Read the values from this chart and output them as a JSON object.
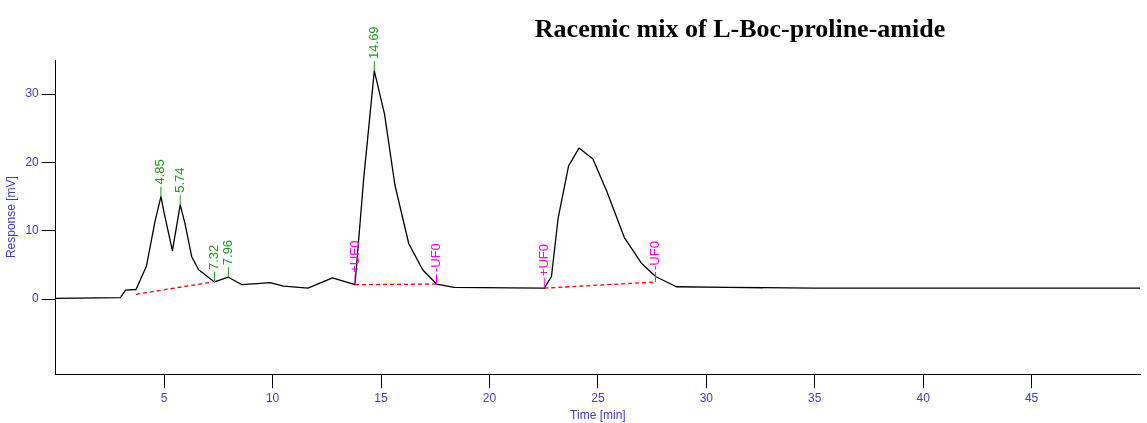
{
  "chart_data": {
    "type": "line",
    "title": "Racemic mix of L-Boc-proline-amide",
    "xlabel": "Time [min]",
    "ylabel": "Response [mV]",
    "xlim": [
      0,
      50
    ],
    "xticks": [
      5,
      10,
      15,
      20,
      25,
      30,
      35,
      40,
      45
    ],
    "ylim": [
      -11,
      35
    ],
    "yticks": [
      0,
      10,
      20,
      30
    ],
    "grid": false,
    "legend": false,
    "marker": "none",
    "series": [
      {
        "color": "#000000",
        "line_style": "solid",
        "x": [
          0,
          2.98,
          3.22,
          3.7,
          4.18,
          4.58,
          4.85,
          5.0,
          5.38,
          5.74,
          5.95,
          6.27,
          6.59,
          7.32,
          7.96,
          8.59,
          9.87,
          10.51,
          11.63,
          12.76,
          13.8,
          14.2,
          14.69,
          15.16,
          15.64,
          16.28,
          16.92,
          17.56,
          18.37,
          22.53,
          22.86,
          23.17,
          23.65,
          24.13,
          24.77,
          25.42,
          26.22,
          27.02,
          27.66,
          28.62,
          31,
          35,
          40,
          45,
          50
        ],
        "values": [
          0.1,
          0.2,
          1.3,
          1.4,
          4.8,
          11.4,
          15.0,
          12.6,
          7.1,
          13.8,
          11.2,
          6.2,
          4.3,
          2.5,
          3.2,
          2.1,
          2.4,
          1.9,
          1.6,
          3.1,
          2.1,
          17.6,
          33.4,
          27.1,
          16.7,
          8.1,
          4.3,
          2.2,
          1.7,
          1.6,
          3.3,
          11.9,
          19.5,
          22.1,
          20.5,
          15.7,
          9.0,
          5.2,
          3.3,
          1.8,
          1.7,
          1.6,
          1.6,
          1.6,
          1.6
        ]
      },
      {
        "color": "#ff0000",
        "line_style": "dashed",
        "x": [
          3.7,
          7.23,
          10,
          13.8,
          17.56,
          20,
          22.53,
          27.66
        ],
        "values": [
          0.7,
          2.5,
          null,
          2.1,
          2.2,
          null,
          1.6,
          2.5
        ]
      }
    ],
    "annotations": [
      {
        "text": "4.85",
        "x": 4.85,
        "y": 15.0
      },
      {
        "text": "5.74",
        "x": 5.74,
        "y": 13.8
      },
      {
        "text": "7.32",
        "x": 7.32,
        "y": 2.5
      },
      {
        "text": "7.96",
        "x": 7.96,
        "y": 3.2
      },
      {
        "text": "14.69",
        "x": 14.69,
        "y": 33.4
      },
      {
        "text": "+UF0",
        "x": 13.8,
        "y": 2.1
      },
      {
        "text": "-UF0",
        "x": 17.56,
        "y": 2.2
      },
      {
        "text": "+UF0",
        "x": 22.53,
        "y": 1.6
      },
      {
        "text": "-UF0",
        "x": 27.66,
        "y": 2.5
      }
    ]
  }
}
